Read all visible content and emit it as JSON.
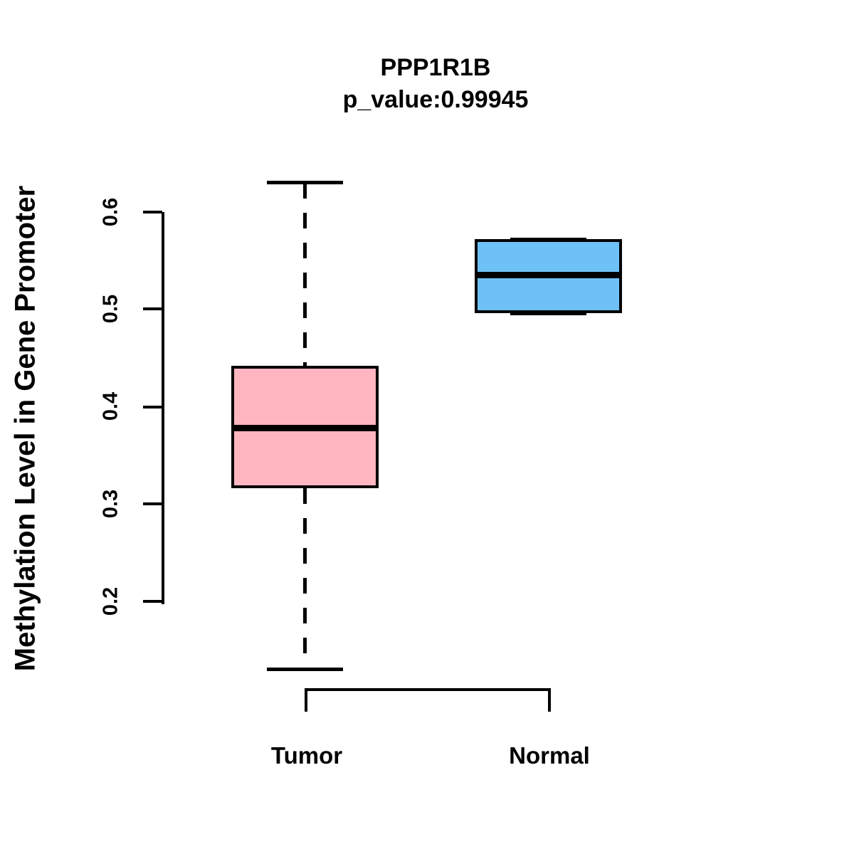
{
  "title": {
    "line1": "PPP1R1B",
    "line2": "p_value:0.99945"
  },
  "y_axis": {
    "label": "Methylation Level in Gene Promoter",
    "ticks": [
      "0.2",
      "0.3",
      "0.4",
      "0.5",
      "0.6"
    ]
  },
  "x_axis": {
    "categories": [
      "Tumor",
      "Normal"
    ]
  },
  "chart_data": {
    "type": "boxplot",
    "title": "PPP1R1B",
    "subtitle": "p_value:0.99945",
    "p_value": "0.99945",
    "gene": "PPP1R1B",
    "ylabel": "Methylation Level in Gene Promoter",
    "xlabel": "",
    "categories": [
      "Tumor",
      "Normal"
    ],
    "ylim": [
      0.2,
      0.6
    ],
    "yticks": [
      0.2,
      0.3,
      0.4,
      0.5,
      0.6
    ],
    "grid": false,
    "legend": "none",
    "series": [
      {
        "name": "Tumor",
        "color": "#FFB6C1",
        "whisker_low": 0.13,
        "q1": 0.316,
        "median": 0.378,
        "q3": 0.442,
        "whisker_high": 0.63
      },
      {
        "name": "Normal",
        "color": "#6EC1F7",
        "whisker_low": 0.496,
        "q1": 0.496,
        "median": 0.535,
        "q3": 0.572,
        "whisker_high": 0.572
      }
    ]
  }
}
